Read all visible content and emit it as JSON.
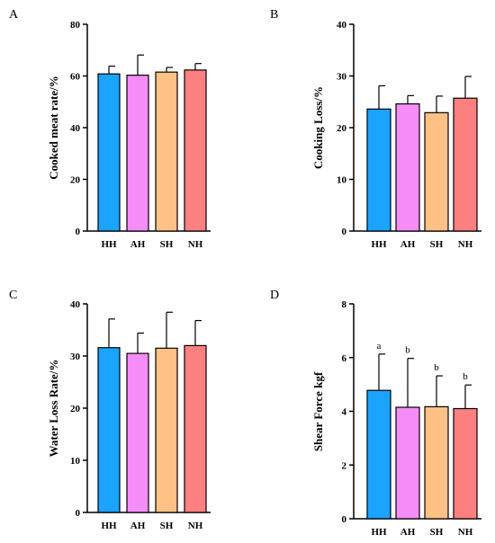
{
  "chart_data": [
    {
      "panel": "A",
      "type": "bar",
      "categories": [
        "HH",
        "AH",
        "SH",
        "NH"
      ],
      "values": [
        60.8,
        60.3,
        61.5,
        62.3
      ],
      "errors": [
        3.0,
        7.8,
        1.8,
        2.5
      ],
      "ylabel": "Cooked meat rate/%",
      "ylim": [
        0,
        80
      ],
      "yticks": [
        0,
        20,
        40,
        60,
        80
      ],
      "significance": [],
      "colors": [
        "#1aa3ff",
        "#f58cf7",
        "#ffc184",
        "#ff8080"
      ]
    },
    {
      "panel": "B",
      "type": "bar",
      "categories": [
        "HH",
        "AH",
        "SH",
        "NH"
      ],
      "values": [
        23.6,
        24.6,
        22.9,
        25.7
      ],
      "errors": [
        4.5,
        1.6,
        3.2,
        4.2
      ],
      "ylabel": "Cooking Loss/%",
      "ylim": [
        0,
        40
      ],
      "yticks": [
        0,
        10,
        20,
        30,
        40
      ],
      "significance": [],
      "colors": [
        "#1aa3ff",
        "#f58cf7",
        "#ffc184",
        "#ff8080"
      ]
    },
    {
      "panel": "C",
      "type": "bar",
      "categories": [
        "HH",
        "AH",
        "SH",
        "NH"
      ],
      "values": [
        31.6,
        30.5,
        31.5,
        32.0
      ],
      "errors": [
        5.5,
        3.9,
        6.9,
        4.8
      ],
      "ylabel": "Water Loss Rate/%",
      "ylim": [
        0,
        40
      ],
      "yticks": [
        0,
        10,
        20,
        30,
        40
      ],
      "significance": [],
      "colors": [
        "#1aa3ff",
        "#f58cf7",
        "#ffc184",
        "#ff8080"
      ]
    },
    {
      "panel": "D",
      "type": "bar",
      "categories": [
        "HH",
        "AH",
        "SH",
        "NH"
      ],
      "values": [
        4.78,
        4.15,
        4.17,
        4.1
      ],
      "errors": [
        1.35,
        1.82,
        1.15,
        0.88
      ],
      "ylabel": "Shear Force kgf",
      "ylim": [
        0,
        8
      ],
      "yticks": [
        0,
        2,
        4,
        6,
        8
      ],
      "significance": [
        "a",
        "b",
        "b",
        "b"
      ],
      "colors": [
        "#1aa3ff",
        "#f58cf7",
        "#ffc184",
        "#ff8080"
      ]
    }
  ]
}
